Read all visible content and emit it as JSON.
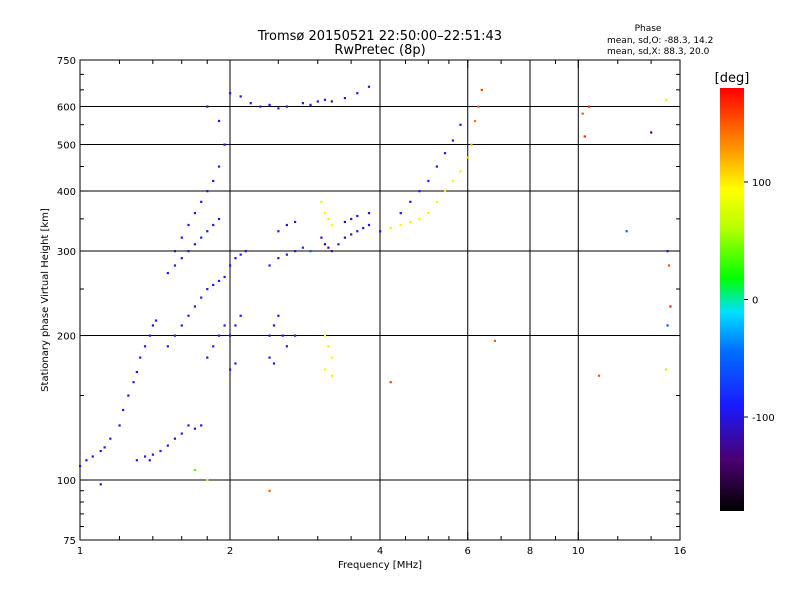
{
  "chart_data": {
    "type": "scatter",
    "title": "Tromsø 20150521 22:50:00–22:51:43",
    "subtitle": "RwPretec (8p)",
    "xlabel": "Frequency [MHz]",
    "ylabel": "Stationary phase Virtual Height [km]",
    "x_scale": "log",
    "y_scale": "log",
    "xlim": [
      1,
      16
    ],
    "ylim": [
      75,
      750
    ],
    "x_ticks": [
      1,
      2,
      4,
      6,
      8,
      10,
      16
    ],
    "x_tick_labels": [
      "1",
      "2",
      "4",
      "6",
      "8",
      "10",
      "16"
    ],
    "x_minor_ticks": [
      1.2,
      1.4,
      1.6,
      1.8,
      2.5,
      3,
      3.5,
      4.5,
      5,
      5.5,
      7,
      9,
      12,
      14
    ],
    "y_ticks": [
      75,
      100,
      200,
      300,
      400,
      500,
      600,
      750
    ],
    "y_tick_labels": [
      "75",
      "100",
      "200",
      "300",
      "400",
      "500",
      "600",
      "750"
    ],
    "x_gridlines": [
      2,
      4,
      6,
      8,
      10
    ],
    "y_gridlines": [
      100,
      200,
      300,
      400,
      500,
      600
    ],
    "phase_legend": {
      "title": "Phase",
      "line_o": "mean, sd,O: -88.3, 14.2",
      "line_x": "mean, sd,X:  88.3, 20.0"
    },
    "colorbar": {
      "label": "[deg]",
      "range": [
        -180,
        180
      ],
      "ticks": [
        100,
        0,
        -100
      ],
      "tick_labels": [
        "100",
        "0",
        "-100"
      ]
    },
    "series": [
      {
        "name": "",
        "points": [
          [
            1.0,
            107,
            -95
          ],
          [
            1.03,
            110,
            -95
          ],
          [
            1.06,
            112,
            -100
          ],
          [
            1.1,
            115,
            -95
          ],
          [
            1.12,
            117,
            -100
          ],
          [
            1.15,
            122,
            -90
          ],
          [
            1.2,
            130,
            -100
          ],
          [
            1.22,
            140,
            -95
          ],
          [
            1.25,
            150,
            -100
          ],
          [
            1.28,
            160,
            -95
          ],
          [
            1.3,
            168,
            -100
          ],
          [
            1.32,
            180,
            -95
          ],
          [
            1.35,
            190,
            -100
          ],
          [
            1.38,
            200,
            -95
          ],
          [
            1.4,
            210,
            -100
          ],
          [
            1.42,
            215,
            -90
          ],
          [
            1.3,
            110,
            -90
          ],
          [
            1.35,
            112,
            -95
          ],
          [
            1.38,
            110,
            -95
          ],
          [
            1.4,
            113,
            -100
          ],
          [
            1.45,
            115,
            -90
          ],
          [
            1.5,
            118,
            -95
          ],
          [
            1.55,
            122,
            -100
          ],
          [
            1.6,
            125,
            -95
          ],
          [
            1.65,
            130,
            -90
          ],
          [
            1.7,
            128,
            -100
          ],
          [
            1.75,
            130,
            -95
          ],
          [
            1.5,
            190,
            -100
          ],
          [
            1.55,
            200,
            -95
          ],
          [
            1.6,
            210,
            -100
          ],
          [
            1.65,
            220,
            -95
          ],
          [
            1.7,
            230,
            -100
          ],
          [
            1.75,
            240,
            -90
          ],
          [
            1.8,
            250,
            -95
          ],
          [
            1.85,
            255,
            -100
          ],
          [
            1.9,
            260,
            -95
          ],
          [
            1.95,
            265,
            -100
          ],
          [
            1.5,
            270,
            -90
          ],
          [
            1.55,
            280,
            -95
          ],
          [
            1.6,
            290,
            -100
          ],
          [
            1.65,
            300,
            -95
          ],
          [
            1.7,
            310,
            -100
          ],
          [
            1.75,
            320,
            -90
          ],
          [
            1.8,
            330,
            -95
          ],
          [
            1.85,
            340,
            -100
          ],
          [
            1.9,
            350,
            -95
          ],
          [
            1.55,
            300,
            -100
          ],
          [
            1.6,
            320,
            -95
          ],
          [
            1.65,
            340,
            -100
          ],
          [
            1.7,
            360,
            -95
          ],
          [
            1.75,
            380,
            -100
          ],
          [
            1.8,
            400,
            -95
          ],
          [
            1.85,
            420,
            -100
          ],
          [
            1.9,
            450,
            -95
          ],
          [
            1.95,
            500,
            -100
          ],
          [
            2.0,
            280,
            -95
          ],
          [
            2.05,
            290,
            -100
          ],
          [
            2.1,
            295,
            -95
          ],
          [
            2.15,
            300,
            -100
          ],
          [
            2.0,
            200,
            -95
          ],
          [
            2.05,
            210,
            -100
          ],
          [
            2.1,
            220,
            -95
          ],
          [
            2.0,
            170,
            -100
          ],
          [
            2.05,
            175,
            -95
          ],
          [
            1.8,
            180,
            -100
          ],
          [
            1.85,
            190,
            -95
          ],
          [
            1.9,
            200,
            -100
          ],
          [
            1.95,
            210,
            -95
          ],
          [
            1.8,
            600,
            -100
          ],
          [
            1.9,
            560,
            -95
          ],
          [
            2.0,
            640,
            -100
          ],
          [
            2.1,
            630,
            -95
          ],
          [
            2.2,
            610,
            -100
          ],
          [
            2.3,
            600,
            -95
          ],
          [
            2.4,
            605,
            -100
          ],
          [
            2.5,
            595,
            -95
          ],
          [
            2.6,
            600,
            -100
          ],
          [
            2.8,
            610,
            -95
          ],
          [
            2.9,
            605,
            -100
          ],
          [
            3.0,
            615,
            -95
          ],
          [
            3.1,
            620,
            -100
          ],
          [
            3.2,
            615,
            -120
          ],
          [
            3.4,
            625,
            -100
          ],
          [
            3.6,
            640,
            -95
          ],
          [
            3.8,
            660,
            -100
          ],
          [
            2.4,
            280,
            -100
          ],
          [
            2.5,
            290,
            -95
          ],
          [
            2.6,
            295,
            -100
          ],
          [
            2.7,
            300,
            -95
          ],
          [
            2.8,
            305,
            -80
          ],
          [
            2.9,
            300,
            -60
          ],
          [
            2.5,
            330,
            -95
          ],
          [
            2.6,
            340,
            -100
          ],
          [
            2.7,
            345,
            -95
          ],
          [
            2.4,
            200,
            -100
          ],
          [
            2.45,
            210,
            -95
          ],
          [
            2.5,
            220,
            -100
          ],
          [
            2.55,
            200,
            -95
          ],
          [
            2.4,
            180,
            -100
          ],
          [
            2.45,
            175,
            -95
          ],
          [
            2.6,
            190,
            -100
          ],
          [
            2.7,
            200,
            -95
          ],
          [
            3.05,
            380,
            90
          ],
          [
            3.1,
            360,
            95
          ],
          [
            3.15,
            350,
            100
          ],
          [
            3.2,
            340,
            90
          ],
          [
            3.05,
            320,
            -120
          ],
          [
            3.1,
            310,
            -130
          ],
          [
            3.15,
            305,
            -125
          ],
          [
            3.2,
            300,
            -120
          ],
          [
            3.3,
            310,
            -110
          ],
          [
            3.4,
            320,
            -120
          ],
          [
            3.5,
            325,
            -110
          ],
          [
            3.6,
            330,
            -100
          ],
          [
            3.7,
            335,
            -110
          ],
          [
            3.8,
            340,
            -100
          ],
          [
            3.4,
            345,
            -120
          ],
          [
            3.5,
            350,
            -110
          ],
          [
            3.6,
            355,
            -100
          ],
          [
            3.8,
            360,
            -95
          ],
          [
            4.0,
            330,
            -90
          ],
          [
            4.2,
            335,
            100
          ],
          [
            4.4,
            340,
            95
          ],
          [
            4.6,
            345,
            100
          ],
          [
            4.8,
            350,
            95
          ],
          [
            5.0,
            360,
            100
          ],
          [
            5.2,
            380,
            95
          ],
          [
            5.4,
            400,
            100
          ],
          [
            5.6,
            420,
            95
          ],
          [
            5.8,
            440,
            100
          ],
          [
            6.0,
            470,
            110
          ],
          [
            6.1,
            500,
            120
          ],
          [
            6.2,
            560,
            140
          ],
          [
            6.3,
            600,
            150
          ],
          [
            6.4,
            650,
            160
          ],
          [
            4.4,
            360,
            -95
          ],
          [
            4.6,
            380,
            -100
          ],
          [
            4.8,
            400,
            -90
          ],
          [
            5.0,
            420,
            -95
          ],
          [
            5.2,
            450,
            -100
          ],
          [
            5.4,
            480,
            -90
          ],
          [
            5.6,
            510,
            -95
          ],
          [
            5.8,
            550,
            -100
          ],
          [
            3.1,
            200,
            95
          ],
          [
            3.15,
            190,
            100
          ],
          [
            3.2,
            180,
            95
          ],
          [
            3.1,
            170,
            90
          ],
          [
            3.2,
            165,
            100
          ],
          [
            10.2,
            580,
            150
          ],
          [
            10.3,
            520,
            170
          ],
          [
            14.0,
            530,
            -130
          ],
          [
            15.0,
            620,
            100
          ],
          [
            15.1,
            300,
            -100
          ],
          [
            15.2,
            280,
            150
          ],
          [
            15.3,
            230,
            170
          ],
          [
            15.1,
            210,
            -60
          ],
          [
            15.0,
            170,
            60
          ],
          [
            1.8,
            100,
            100
          ],
          [
            1.7,
            105,
            40
          ],
          [
            2.4,
            95,
            150
          ],
          [
            1.1,
            98,
            -110
          ],
          [
            4.2,
            160,
            160
          ],
          [
            6.8,
            195,
            150
          ],
          [
            11.0,
            165,
            150
          ],
          [
            12.5,
            330,
            -50
          ],
          [
            10.5,
            600,
            170
          ]
        ]
      }
    ]
  }
}
